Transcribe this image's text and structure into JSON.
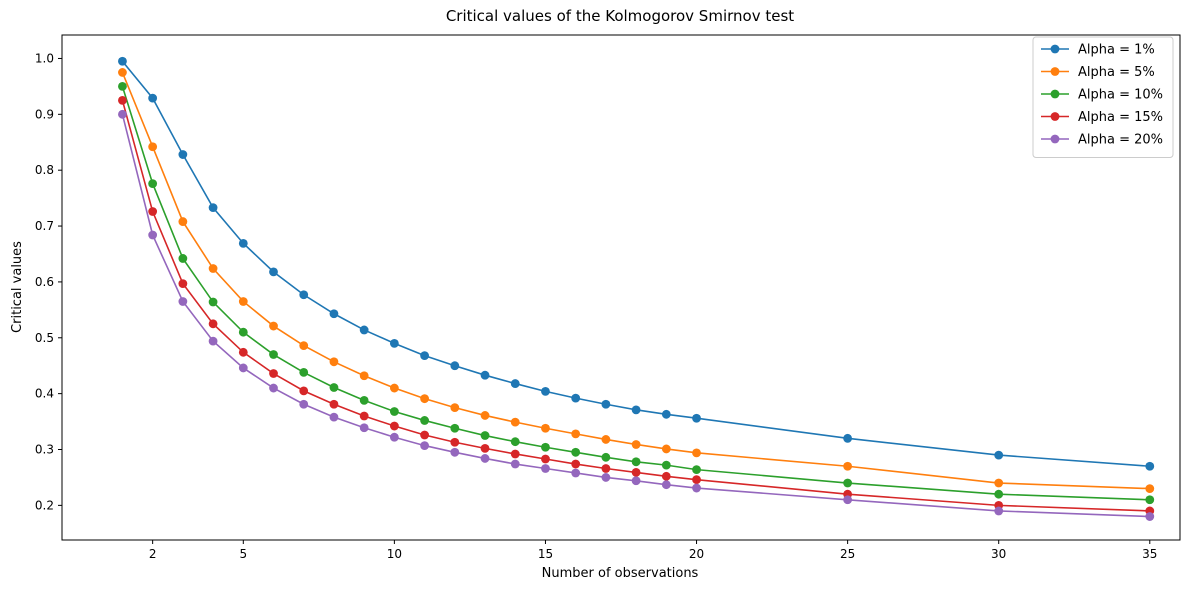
{
  "chart_data": {
    "type": "line",
    "title": "Critical values of the Kolmogorov Smirnov test",
    "xlabel": "Number of observations",
    "ylabel": "Critical values",
    "xlim": [
      -1,
      36
    ],
    "ylim": [
      0.138,
      1.042
    ],
    "xticks": [
      2,
      5,
      10,
      15,
      20,
      25,
      30,
      35
    ],
    "yticks": [
      0.2,
      0.3,
      0.4,
      0.5,
      0.6,
      0.7,
      0.8,
      0.9,
      1.0
    ],
    "ytick_labels": [
      "0.2",
      "0.3",
      "0.4",
      "0.5",
      "0.6",
      "0.7",
      "0.8",
      "0.9",
      "1.0"
    ],
    "grid": false,
    "legend_position": "top-right",
    "x": [
      1,
      2,
      3,
      4,
      5,
      6,
      7,
      8,
      9,
      10,
      11,
      12,
      13,
      14,
      15,
      16,
      17,
      18,
      19,
      20,
      25,
      30,
      35
    ],
    "series": [
      {
        "name": "Alpha = 1%",
        "color": "#1f77b4",
        "values": [
          0.995,
          0.929,
          0.828,
          0.733,
          0.669,
          0.618,
          0.577,
          0.543,
          0.514,
          0.49,
          0.468,
          0.45,
          0.433,
          0.418,
          0.404,
          0.392,
          0.381,
          0.371,
          0.363,
          0.356,
          0.32,
          0.29,
          0.27
        ]
      },
      {
        "name": "Alpha = 5%",
        "color": "#ff7f0e",
        "values": [
          0.975,
          0.842,
          0.708,
          0.624,
          0.565,
          0.521,
          0.486,
          0.457,
          0.432,
          0.41,
          0.391,
          0.375,
          0.361,
          0.349,
          0.338,
          0.328,
          0.318,
          0.309,
          0.301,
          0.294,
          0.27,
          0.24,
          0.23
        ]
      },
      {
        "name": "Alpha = 10%",
        "color": "#2ca02c",
        "values": [
          0.95,
          0.776,
          0.642,
          0.564,
          0.51,
          0.47,
          0.438,
          0.411,
          0.388,
          0.368,
          0.352,
          0.338,
          0.325,
          0.314,
          0.304,
          0.295,
          0.286,
          0.278,
          0.272,
          0.264,
          0.24,
          0.22,
          0.21
        ]
      },
      {
        "name": "Alpha = 15%",
        "color": "#d62728",
        "values": [
          0.925,
          0.726,
          0.597,
          0.525,
          0.474,
          0.436,
          0.405,
          0.381,
          0.36,
          0.342,
          0.326,
          0.313,
          0.302,
          0.292,
          0.283,
          0.274,
          0.266,
          0.259,
          0.252,
          0.246,
          0.22,
          0.2,
          0.19
        ]
      },
      {
        "name": "Alpha = 20%",
        "color": "#9467bd",
        "values": [
          0.9,
          0.684,
          0.565,
          0.494,
          0.446,
          0.41,
          0.381,
          0.358,
          0.339,
          0.322,
          0.307,
          0.295,
          0.284,
          0.274,
          0.266,
          0.258,
          0.25,
          0.244,
          0.237,
          0.231,
          0.21,
          0.19,
          0.18
        ]
      }
    ]
  }
}
